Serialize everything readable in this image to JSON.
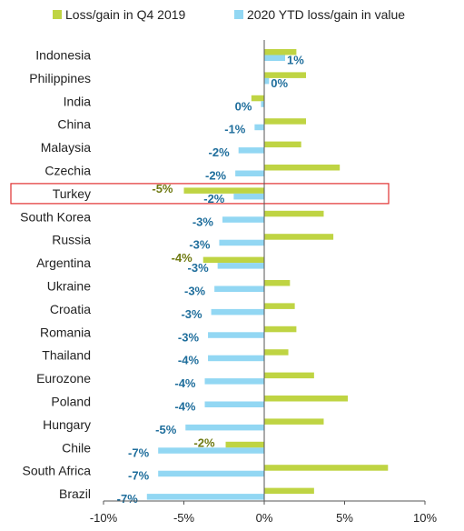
{
  "legend": {
    "series1_label": "Loss/gain in Q4 2019",
    "series2_label": "2020 YTD loss/gain in value"
  },
  "colors": {
    "q4_2019": "#BFD443",
    "ytd_2020": "#92D7F3",
    "highlight_box": "#E03030",
    "ytd_label_text": "#1F6E9C",
    "q4_label_text": "#6F7A12"
  },
  "chart_data": {
    "type": "bar",
    "orientation": "horizontal",
    "categories": [
      "Indonesia",
      "Philippines",
      "India",
      "China",
      "Malaysia",
      "Czechia",
      "Turkey",
      "South Korea",
      "Russia",
      "Argentina",
      "Ukraine",
      "Croatia",
      "Romania",
      "Thailand",
      "Eurozone",
      "Poland",
      "Hungary",
      "Chile",
      "South Africa",
      "Brazil"
    ],
    "series": [
      {
        "name": "Loss/gain in Q4 2019",
        "values": [
          2.0,
          2.6,
          -0.8,
          2.6,
          2.3,
          4.7,
          -5.0,
          3.7,
          4.3,
          -3.8,
          1.6,
          1.9,
          2.0,
          1.5,
          3.1,
          5.2,
          3.7,
          -2.4,
          7.7,
          3.1
        ],
        "labels": [
          "",
          "",
          "",
          "",
          "",
          "",
          "-5%",
          "",
          "",
          "-4%",
          "",
          "",
          "",
          "",
          "",
          "",
          "",
          "-2%",
          "",
          ""
        ]
      },
      {
        "name": "2020 YTD loss/gain in value",
        "values": [
          1.3,
          0.3,
          -0.2,
          -0.6,
          -1.6,
          -1.8,
          -1.9,
          -2.6,
          -2.8,
          -2.9,
          -3.1,
          -3.3,
          -3.5,
          -3.5,
          -3.7,
          -3.7,
          -4.9,
          -6.6,
          -6.6,
          -7.3
        ],
        "labels": [
          "1%",
          "0%",
          "0%",
          "-1%",
          "-2%",
          "-2%",
          "-2%",
          "-3%",
          "-3%",
          "-3%",
          "-3%",
          "-3%",
          "-3%",
          "-4%",
          "-4%",
          "-4%",
          "-5%",
          "-7%",
          "-7%",
          "-7%"
        ]
      }
    ],
    "xlim": [
      -10,
      10
    ],
    "xticks": [
      "-10%",
      "-5%",
      "0%",
      "5%",
      "10%"
    ],
    "xtick_values": [
      -10,
      -5,
      0,
      5,
      10
    ],
    "highlighted_category": "Turkey",
    "legend_position": "top",
    "grid": false
  }
}
